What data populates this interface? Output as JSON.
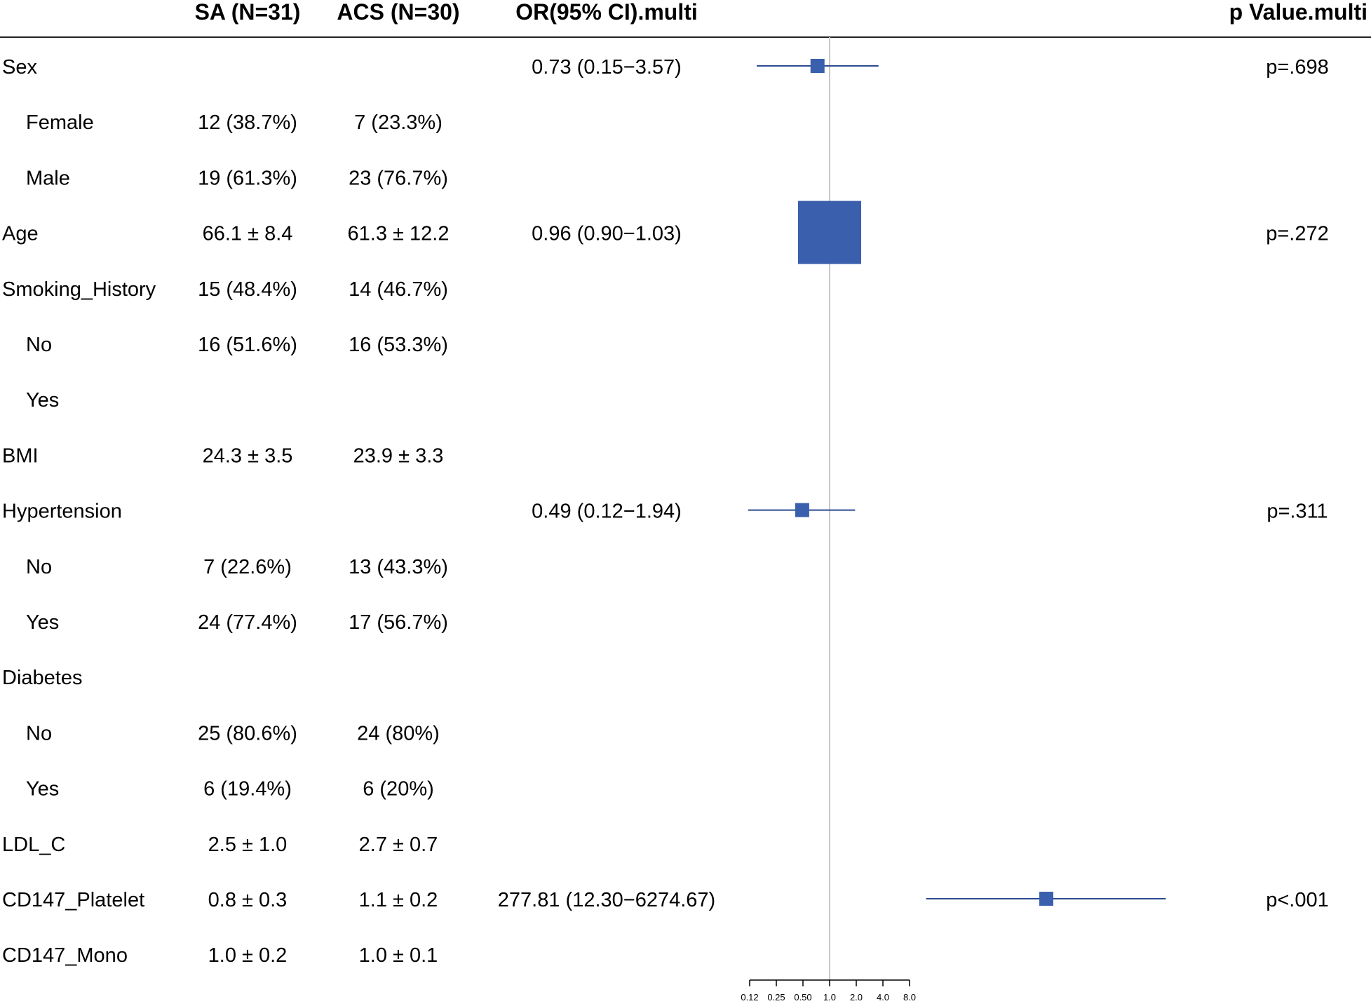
{
  "chart_data": {
    "type": "forest",
    "columns": [
      "SA (N=31)",
      "ACS (N=30)",
      "OR(95% CI).multi",
      "p Value.multi"
    ],
    "rows": [
      {
        "label": "Sex",
        "indent": false,
        "sa": "",
        "acs": "",
        "or_text": "0.73 (0.15−3.57)",
        "p": "p=.698",
        "or": 0.73,
        "lo": 0.15,
        "hi": 3.57,
        "box": "small"
      },
      {
        "label": "Female",
        "indent": true,
        "sa": "12 (38.7%)",
        "acs": "7 (23.3%)",
        "or_text": "",
        "p": ""
      },
      {
        "label": "Male",
        "indent": true,
        "sa": "19 (61.3%)",
        "acs": "23 (76.7%)",
        "or_text": "",
        "p": ""
      },
      {
        "label": "Age",
        "indent": false,
        "sa": "66.1 ± 8.4",
        "acs": "61.3 ± 12.2",
        "or_text": "0.96 (0.90−1.03)",
        "p": "p=.272",
        "or": 0.96,
        "lo": 0.9,
        "hi": 1.03,
        "box": "large"
      },
      {
        "label": "Smoking_History",
        "indent": false,
        "sa": "15 (48.4%)",
        "acs": "14 (46.7%)",
        "or_text": "",
        "p": ""
      },
      {
        "label": "No",
        "indent": true,
        "sa": "16 (51.6%)",
        "acs": "16 (53.3%)",
        "or_text": "",
        "p": ""
      },
      {
        "label": "Yes",
        "indent": true,
        "sa": "",
        "acs": "",
        "or_text": "",
        "p": ""
      },
      {
        "label": "BMI",
        "indent": false,
        "sa": "24.3 ± 3.5",
        "acs": "23.9 ± 3.3",
        "or_text": "",
        "p": ""
      },
      {
        "label": "Hypertension",
        "indent": false,
        "sa": "",
        "acs": "",
        "or_text": "0.49 (0.12−1.94)",
        "p": "p=.311",
        "or": 0.49,
        "lo": 0.12,
        "hi": 1.94,
        "box": "small"
      },
      {
        "label": "No",
        "indent": true,
        "sa": "7 (22.6%)",
        "acs": "13 (43.3%)",
        "or_text": "",
        "p": ""
      },
      {
        "label": "Yes",
        "indent": true,
        "sa": "24 (77.4%)",
        "acs": "17 (56.7%)",
        "or_text": "",
        "p": ""
      },
      {
        "label": "Diabetes",
        "indent": false,
        "sa": "",
        "acs": "",
        "or_text": "",
        "p": ""
      },
      {
        "label": "No",
        "indent": true,
        "sa": "25 (80.6%)",
        "acs": "24 (80%)",
        "or_text": "",
        "p": ""
      },
      {
        "label": "Yes",
        "indent": true,
        "sa": "6 (19.4%)",
        "acs": "6 (20%)",
        "or_text": "",
        "p": ""
      },
      {
        "label": "LDL_C",
        "indent": false,
        "sa": "2.5 ± 1.0",
        "acs": "2.7 ± 0.7",
        "or_text": "",
        "p": ""
      },
      {
        "label": "CD147_Platelet",
        "indent": false,
        "sa": "0.8 ± 0.3",
        "acs": "1.1 ± 0.2",
        "or_text": "277.81 (12.30−6274.67)",
        "p": "p<.001",
        "or": 277.81,
        "lo": 12.3,
        "hi": 6274.67,
        "box": "small"
      },
      {
        "label": "CD147_Mono",
        "indent": false,
        "sa": "1.0 ± 0.2",
        "acs": "1.0 ± 0.1",
        "or_text": "",
        "p": ""
      }
    ],
    "x_axis": {
      "scale": "log2",
      "ticks": [
        0.125,
        0.25,
        0.5,
        1,
        2,
        4,
        8
      ],
      "tick_labels": [
        "0.12",
        "0.25",
        "0.50",
        "1.0",
        "2.0",
        "4.0",
        "8.0"
      ],
      "reference": 1
    },
    "colors": {
      "marker": "#3a5fad",
      "ci_line": "#2b4a8f",
      "reference_line": "#c8c8c8",
      "rule": "#222222"
    }
  }
}
